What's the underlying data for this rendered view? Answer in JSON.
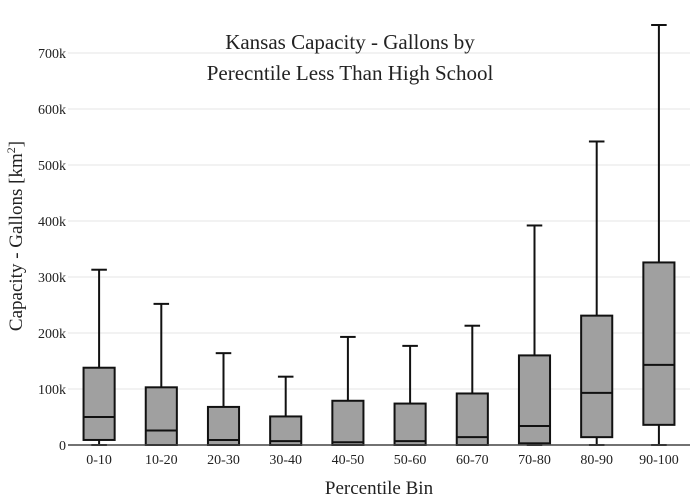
{
  "chart_data": {
    "type": "box",
    "title_lines": [
      "Kansas Capacity - Gallons by",
      "Perecntile Less Than High School"
    ],
    "xlabel": "Percentile Bin",
    "ylabel_main": "Capacity - Gallons  [km",
    "ylabel_sup": "2",
    "ylabel_end": "]",
    "ylim": [
      0,
      750000
    ],
    "y_ticks": [
      0,
      100000,
      200000,
      300000,
      400000,
      500000,
      600000,
      700000
    ],
    "y_tick_labels": [
      "0",
      "100k",
      "200k",
      "300k",
      "400k",
      "500k",
      "600k",
      "700k"
    ],
    "grid": true,
    "categories": [
      "0-10",
      "10-20",
      "20-30",
      "30-40",
      "40-50",
      "50-60",
      "60-70",
      "70-80",
      "80-90",
      "90-100"
    ],
    "boxes": [
      {
        "min": 0,
        "q1": 9000,
        "median": 50000,
        "q3": 138000,
        "max": 313000
      },
      {
        "min": 0,
        "q1": 0,
        "median": 26000,
        "q3": 103000,
        "max": 252000
      },
      {
        "min": 0,
        "q1": 0,
        "median": 9000,
        "q3": 68000,
        "max": 164000
      },
      {
        "min": 0,
        "q1": 0,
        "median": 7000,
        "q3": 51000,
        "max": 122000
      },
      {
        "min": 0,
        "q1": 0,
        "median": 5000,
        "q3": 79000,
        "max": 193000
      },
      {
        "min": 0,
        "q1": 0,
        "median": 7000,
        "q3": 74000,
        "max": 177000
      },
      {
        "min": 0,
        "q1": 0,
        "median": 14000,
        "q3": 92000,
        "max": 213000
      },
      {
        "min": 0,
        "q1": 3000,
        "median": 34000,
        "q3": 160000,
        "max": 392000
      },
      {
        "min": 0,
        "q1": 14000,
        "median": 93000,
        "q3": 231000,
        "max": 542000
      },
      {
        "min": 0,
        "q1": 36000,
        "median": 143000,
        "q3": 326000,
        "max": 750000
      }
    ],
    "colors": {
      "box_fill": "#a0a0a0",
      "box_stroke": "#111111",
      "whisker": "#111111"
    }
  }
}
